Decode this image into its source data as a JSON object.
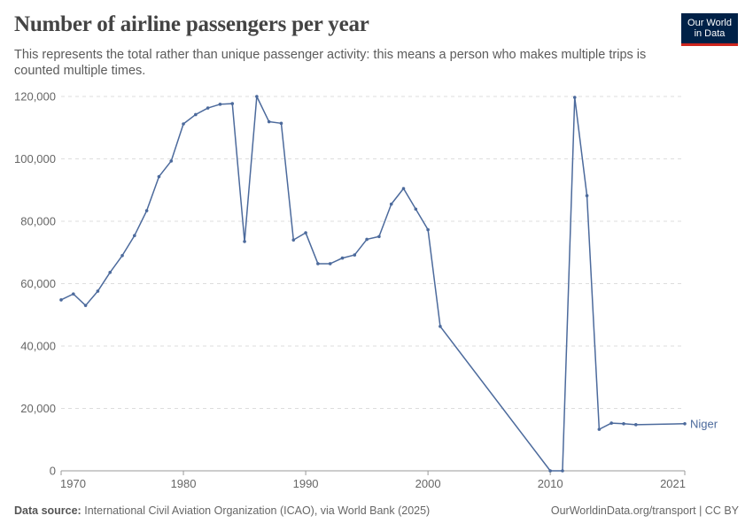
{
  "header": {
    "title": "Number of airline passengers per year",
    "subtitle": "This represents the total rather than unique passenger activity: this means a person who makes multiple trips is counted multiple times."
  },
  "logo": {
    "line1": "Our World",
    "line2": "in Data"
  },
  "footer": {
    "source_label": "Data source:",
    "source_text": "International Civil Aviation Organization (ICAO), via World Bank (2025)",
    "right_text": "OurWorldinData.org/transport | CC BY"
  },
  "colors": {
    "line": "#4c6a9c",
    "grid": "#dddddd",
    "logo_bg": "#002147",
    "logo_accent": "#ce261e"
  },
  "chart_data": {
    "type": "line",
    "title": "Number of airline passengers per year",
    "xlabel": "",
    "ylabel": "",
    "xlim": [
      1970,
      2021
    ],
    "ylim": [
      0,
      120000
    ],
    "x_ticks": [
      "1970",
      "1980",
      "1990",
      "2000",
      "2010",
      "2021"
    ],
    "x_tick_values": [
      1970,
      1980,
      1990,
      2000,
      2010,
      2021
    ],
    "y_ticks": [
      "0",
      "20,000",
      "40,000",
      "60,000",
      "80,000",
      "100,000",
      "120,000"
    ],
    "y_tick_values": [
      0,
      20000,
      40000,
      60000,
      80000,
      100000,
      120000
    ],
    "grid": true,
    "series": [
      {
        "name": "Niger",
        "x": [
          1970,
          1971,
          1972,
          1973,
          1974,
          1975,
          1976,
          1977,
          1978,
          1979,
          1980,
          1981,
          1982,
          1983,
          1984,
          1985,
          1986,
          1987,
          1988,
          1989,
          1990,
          1991,
          1992,
          1993,
          1994,
          1995,
          1996,
          1997,
          1998,
          1999,
          2000,
          2001,
          2010,
          2011,
          2012,
          2013,
          2014,
          2015,
          2016,
          2017,
          2021
        ],
        "values": [
          54800,
          56700,
          53000,
          57600,
          63600,
          69000,
          75400,
          83400,
          94300,
          99300,
          111200,
          114200,
          116300,
          117500,
          117700,
          73500,
          120000,
          111900,
          111400,
          74000,
          76300,
          66400,
          66400,
          68200,
          69200,
          74200,
          75100,
          85500,
          90500,
          83900,
          77300,
          46300,
          0,
          0,
          119700,
          88200,
          13300,
          15300,
          15100,
          14800,
          15100
        ]
      }
    ]
  }
}
